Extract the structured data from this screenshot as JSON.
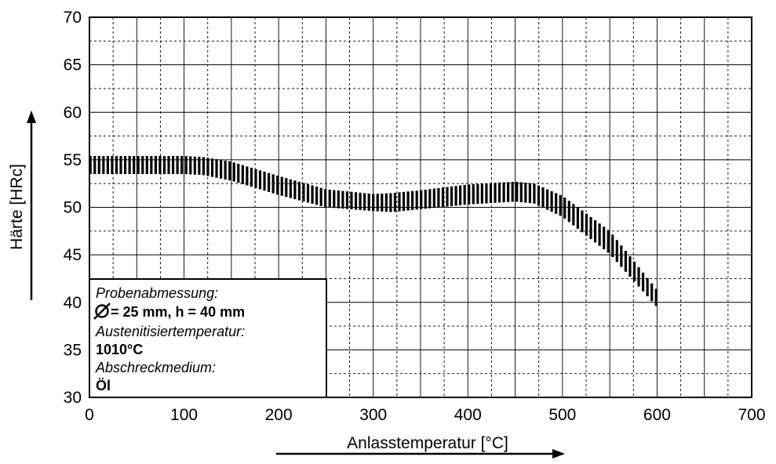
{
  "chart_data": {
    "type": "area",
    "xlabel": "Anlasstemperatur [°C]",
    "ylabel": "Härte [HRc]",
    "xlim": [
      0,
      700
    ],
    "ylim": [
      30,
      70
    ],
    "xticks": [
      0,
      100,
      200,
      300,
      400,
      500,
      600,
      700
    ],
    "yticks": [
      30,
      35,
      40,
      45,
      50,
      55,
      60,
      65,
      70
    ],
    "grid": true,
    "band": {
      "x": [
        0,
        50,
        100,
        120,
        150,
        200,
        250,
        300,
        320,
        350,
        400,
        450,
        470,
        500,
        550,
        600
      ],
      "upper": [
        55.4,
        55.4,
        55.4,
        55.3,
        54.8,
        53.3,
        51.9,
        51.4,
        51.5,
        51.8,
        52.4,
        52.7,
        52.5,
        51.2,
        47.5,
        41.3
      ],
      "lower": [
        53.5,
        53.5,
        53.5,
        53.4,
        52.8,
        51.3,
        50.0,
        49.6,
        49.5,
        49.8,
        50.3,
        50.6,
        50.4,
        49.0,
        45.1,
        39.5
      ]
    },
    "colors": {
      "band": "#000000",
      "grid": "#000000",
      "background": "#ffffff"
    }
  },
  "legend_box": {
    "lines": [
      {
        "text": "Probenabmessung:",
        "style": "italic"
      },
      {
        "text": "= 25 mm, h = 40 mm",
        "style": "bold",
        "prefix_symbol": "diameter"
      },
      {
        "text": "Austenitisiertemperatur:",
        "style": "italic"
      },
      {
        "text": "1010°C",
        "style": "bold"
      },
      {
        "text": "Abschreckmedium:",
        "style": "italic"
      },
      {
        "text": "Öl",
        "style": "bold"
      }
    ]
  }
}
